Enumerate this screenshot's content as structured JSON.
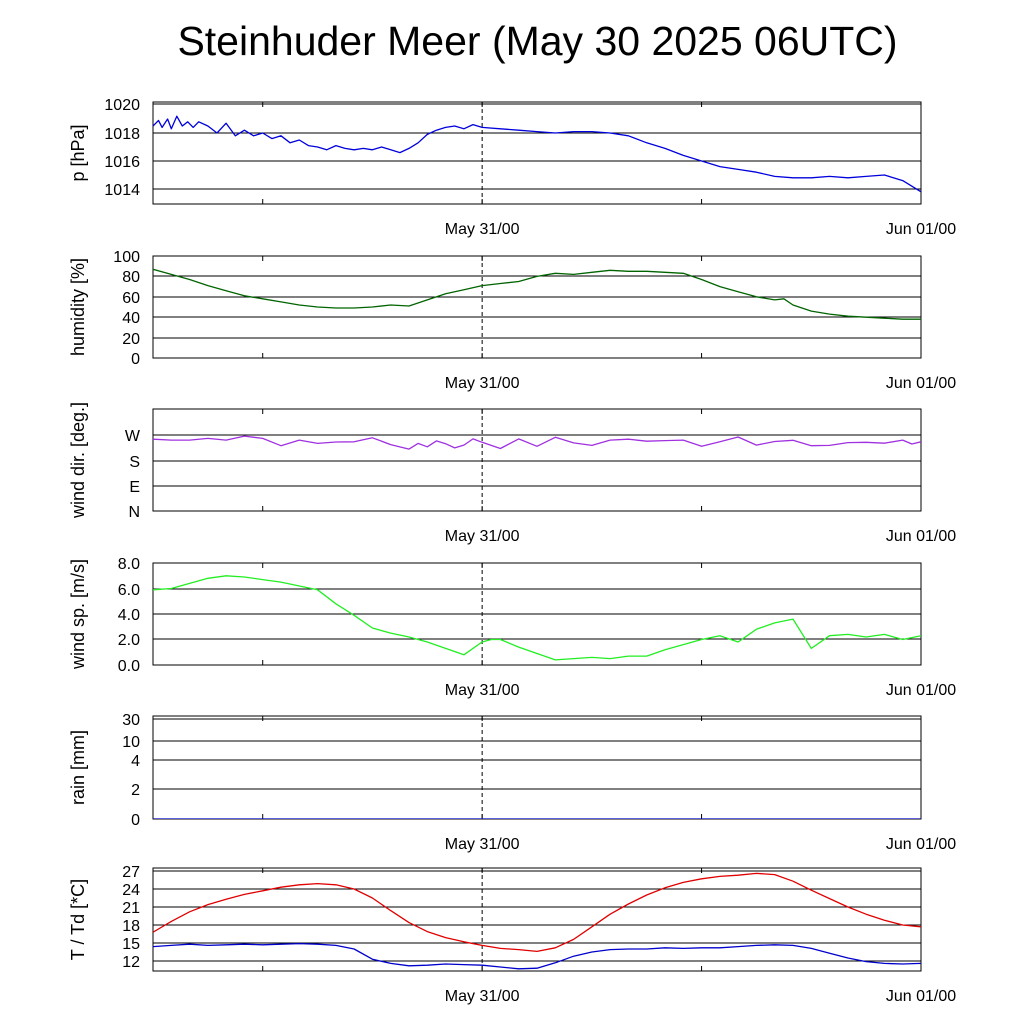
{
  "title": "Steinhuder Meer (May 30 2025 06UTC)",
  "chart_data": [
    {
      "type": "line",
      "ylabel": "p [hPa]",
      "yticks": [
        "1014",
        "1016",
        "1018",
        "1020"
      ],
      "xticks": [
        "May 31/00",
        "Jun 01/00"
      ],
      "color": "#0000dd",
      "series": [
        {
          "x": [
            6,
            6.3,
            6.5,
            6.8,
            7,
            7.3,
            7.6,
            7.9,
            8.2,
            8.5,
            9,
            9.5,
            10,
            10.5,
            11,
            11.5,
            12,
            12.5,
            13,
            13.5,
            14,
            14.5,
            15,
            15.5,
            16,
            16.5,
            17,
            17.5,
            18,
            18.5,
            19,
            19.5,
            20,
            20.5,
            21,
            21.5,
            22,
            22.5,
            23,
            23.5,
            24,
            25,
            26,
            27,
            28,
            29,
            30,
            31,
            32,
            33,
            34,
            35,
            36,
            37,
            38,
            39,
            40,
            41,
            42,
            43,
            44,
            45,
            46,
            47,
            48
          ],
          "y": [
            1018.5,
            1018.9,
            1018.4,
            1019.0,
            1018.3,
            1019.2,
            1018.5,
            1018.8,
            1018.4,
            1018.8,
            1018.5,
            1018.0,
            1018.7,
            1017.8,
            1018.2,
            1017.8,
            1018.0,
            1017.6,
            1017.8,
            1017.3,
            1017.5,
            1017.1,
            1017.0,
            1016.8,
            1017.1,
            1016.9,
            1016.8,
            1016.9,
            1016.8,
            1017.0,
            1016.8,
            1016.6,
            1016.9,
            1017.3,
            1017.9,
            1018.2,
            1018.4,
            1018.5,
            1018.3,
            1018.6,
            1018.4,
            1018.3,
            1018.2,
            1018.1,
            1018.0,
            1018.1,
            1018.1,
            1018.0,
            1017.8,
            1017.3,
            1016.9,
            1016.4,
            1016.0,
            1015.6,
            1015.4,
            1015.2,
            1014.9,
            1014.8,
            1014.8,
            1014.9,
            1014.8,
            1014.9,
            1015.0,
            1014.6,
            1013.8
          ]
        }
      ]
    },
    {
      "type": "line",
      "ylabel": "humidity [%]",
      "yticks": [
        "0",
        "20",
        "40",
        "60",
        "80",
        "100"
      ],
      "xticks": [
        "May 31/00",
        "Jun 01/00"
      ],
      "color": "#006400",
      "series": [
        {
          "x": [
            6,
            7,
            8,
            9,
            10,
            11,
            12,
            13,
            14,
            15,
            16,
            17,
            18,
            19,
            20,
            21,
            22,
            23,
            24,
            25,
            26,
            27,
            28,
            29,
            30,
            31,
            32,
            33,
            34,
            35,
            36,
            37,
            38,
            39,
            40,
            40.5,
            41,
            42,
            43,
            44,
            45,
            46,
            47,
            48
          ],
          "y": [
            87,
            82,
            77,
            71,
            66,
            61,
            58,
            55,
            52,
            50,
            49,
            49,
            50,
            52,
            51,
            57,
            63,
            67,
            71,
            73,
            75,
            80,
            83,
            82,
            84,
            86,
            85,
            85,
            84,
            83,
            77,
            70,
            65,
            60,
            57,
            58,
            52,
            46,
            43,
            41,
            40,
            39,
            38,
            38
          ]
        }
      ]
    },
    {
      "type": "line",
      "ylabel": "wind dir. [deg.]",
      "yticks": [
        "N",
        "E",
        "S",
        "W"
      ],
      "xticks": [
        "May 31/00",
        "Jun 01/00"
      ],
      "color": "#a030e0",
      "series": [
        {
          "x": [
            6,
            7,
            8,
            9,
            10,
            11,
            12,
            13,
            14,
            15,
            16,
            17,
            18,
            19,
            20,
            20.5,
            21,
            21.5,
            22,
            22.5,
            23,
            23.5,
            24,
            25,
            26,
            27,
            28,
            29,
            30,
            31,
            32,
            33,
            34,
            35,
            36,
            37,
            38,
            39,
            40,
            41,
            42,
            43,
            44,
            45,
            46,
            47,
            47.5,
            48
          ],
          "y": [
            255,
            252,
            252,
            258,
            252,
            266,
            258,
            232,
            252,
            240,
            245,
            246,
            260,
            236,
            220,
            240,
            228,
            249,
            239,
            224,
            234,
            256,
            244,
            222,
            256,
            230,
            262,
            242,
            233,
            252,
            255,
            248,
            250,
            252,
            230,
            246,
            263,
            234,
            247,
            251,
            232,
            233,
            243,
            244,
            241,
            252,
            238,
            246
          ]
        }
      ]
    },
    {
      "type": "line",
      "ylabel": "wind sp. [m/s]",
      "yticks": [
        "0.0",
        "2.0",
        "4.0",
        "6.0",
        "8.0"
      ],
      "xticks": [
        "May 31/00",
        "Jun 01/00"
      ],
      "color": "#22ee22",
      "series": [
        {
          "x": [
            6,
            7,
            8,
            9,
            10,
            11,
            12,
            13,
            14,
            15,
            16,
            17,
            18,
            19,
            20,
            21,
            22,
            23,
            24,
            24.5,
            25,
            26,
            27,
            28,
            29,
            30,
            31,
            32,
            33,
            34,
            35,
            36,
            37,
            38,
            39,
            40,
            41,
            42,
            43,
            44,
            45,
            46,
            47,
            48
          ],
          "y": [
            5.9,
            6.0,
            6.4,
            6.8,
            7.0,
            6.9,
            6.7,
            6.5,
            6.2,
            5.9,
            4.8,
            3.9,
            2.9,
            2.5,
            2.2,
            1.8,
            1.3,
            0.8,
            1.8,
            2.0,
            2.0,
            1.4,
            0.9,
            0.4,
            0.5,
            0.6,
            0.5,
            0.7,
            0.7,
            1.2,
            1.6,
            2.0,
            2.3,
            1.8,
            2.8,
            3.3,
            3.6,
            1.3,
            2.3,
            2.4,
            2.2,
            2.4,
            2.0,
            2.3
          ]
        }
      ]
    },
    {
      "type": "line",
      "ylabel": "rain [mm]",
      "yticks": [
        "0",
        "2",
        "4",
        "10",
        "30"
      ],
      "xticks": [
        "May 31/00",
        "Jun 01/00"
      ],
      "color": "#0000cc",
      "series": [
        {
          "x": [
            6,
            48
          ],
          "y": [
            0,
            0
          ]
        }
      ]
    },
    {
      "type": "line",
      "ylabel": "T / Td [*C]",
      "yticks": [
        "12",
        "15",
        "18",
        "21",
        "24",
        "27"
      ],
      "xticks": [
        "May 31/00",
        "Jun 01/00"
      ],
      "colors": [
        "#e00000",
        "#0000cc"
      ],
      "series": [
        {
          "x": [
            6,
            7,
            8,
            9,
            10,
            11,
            12,
            13,
            14,
            15,
            16,
            17,
            18,
            19,
            20,
            21,
            22,
            23,
            24,
            25,
            26,
            27,
            28,
            29,
            30,
            31,
            32,
            33,
            34,
            35,
            36,
            37,
            38,
            39,
            40,
            41,
            42,
            43,
            44,
            45,
            46,
            47,
            48
          ],
          "y": [
            16.8,
            18.6,
            20.2,
            21.4,
            22.3,
            23.1,
            23.7,
            24.3,
            24.7,
            24.9,
            24.7,
            24.0,
            22.5,
            20.4,
            18.4,
            16.9,
            15.9,
            15.2,
            14.6,
            14.1,
            13.9,
            13.6,
            14.2,
            15.6,
            17.7,
            19.8,
            21.5,
            23.0,
            24.2,
            25.1,
            25.7,
            26.1,
            26.3,
            26.6,
            26.4,
            25.3,
            23.8,
            22.4,
            21.0,
            19.8,
            18.8,
            18.0,
            17.7
          ]
        },
        {
          "x": [
            6,
            7,
            8,
            9,
            10,
            11,
            12,
            13,
            14,
            15,
            16,
            17,
            18,
            19,
            20,
            21,
            22,
            23,
            24,
            25,
            26,
            27,
            28,
            29,
            30,
            31,
            32,
            33,
            34,
            35,
            36,
            37,
            38,
            39,
            40,
            41,
            42,
            43,
            44,
            45,
            46,
            47,
            48
          ],
          "y": [
            14.4,
            14.6,
            14.8,
            14.6,
            14.7,
            14.8,
            14.7,
            14.8,
            14.9,
            14.8,
            14.6,
            14.0,
            12.3,
            11.6,
            11.2,
            11.3,
            11.5,
            11.4,
            11.3,
            11.0,
            10.7,
            10.8,
            11.7,
            12.8,
            13.5,
            13.9,
            14.0,
            14.0,
            14.2,
            14.1,
            14.2,
            14.2,
            14.4,
            14.6,
            14.7,
            14.6,
            14.1,
            13.3,
            12.5,
            11.9,
            11.6,
            11.5,
            11.6
          ]
        }
      ]
    }
  ]
}
